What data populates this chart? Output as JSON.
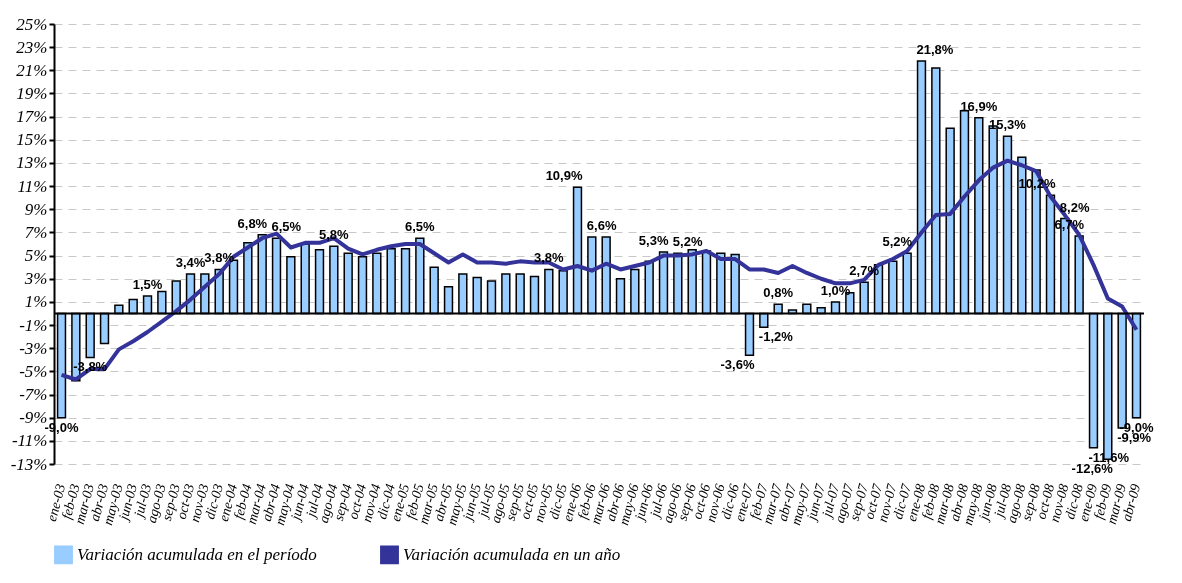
{
  "chart_data": {
    "type": "bar",
    "categories": [
      "ene-03",
      "feb-03",
      "mar-03",
      "abr-03",
      "may-03",
      "jun-03",
      "jul-03",
      "ago-03",
      "sep-03",
      "oct-03",
      "nov-03",
      "dic-03",
      "ene-04",
      "feb-04",
      "mar-04",
      "abr-04",
      "may-04",
      "jun-04",
      "jul-04",
      "ago-04",
      "sep-04",
      "oct-04",
      "nov-04",
      "dic-04",
      "ene-05",
      "feb-05",
      "mar-05",
      "abr-05",
      "may-05",
      "jun-05",
      "jul-05",
      "ago-05",
      "sep-05",
      "oct-05",
      "nov-05",
      "dic-05",
      "ene-06",
      "feb-06",
      "mar-06",
      "abr-06",
      "may-06",
      "jun-06",
      "jul-06",
      "ago-06",
      "sep-06",
      "oct-06",
      "nov-06",
      "dic-06",
      "ene-07",
      "feb-07",
      "mar-07",
      "abr-07",
      "may-07",
      "jun-07",
      "jul-07",
      "ago-07",
      "sep-07",
      "oct-07",
      "nov-07",
      "dic-07",
      "ene-08",
      "feb-08",
      "mar-08",
      "abr-08",
      "may-08",
      "jun-08",
      "jul-08",
      "ago-08",
      "sep-08",
      "oct-08",
      "nov-08",
      "dic-08",
      "ene-09",
      "feb-09",
      "mar-09",
      "abr-09"
    ],
    "series": [
      {
        "name": "Variación acumulada en el período",
        "type": "bar",
        "color": "#99ccff",
        "values": [
          -9.0,
          -5.8,
          -3.8,
          -2.6,
          0.7,
          1.2,
          1.5,
          1.9,
          2.8,
          3.4,
          3.4,
          3.8,
          4.6,
          6.1,
          6.8,
          6.5,
          4.9,
          6.0,
          5.5,
          5.8,
          5.2,
          4.9,
          5.2,
          5.6,
          5.6,
          6.5,
          4.0,
          2.3,
          3.4,
          3.1,
          2.8,
          3.4,
          3.4,
          3.2,
          3.8,
          3.7,
          10.9,
          6.6,
          6.6,
          3.0,
          3.8,
          4.5,
          5.3,
          5.2,
          5.5,
          5.4,
          5.2,
          5.1,
          -3.6,
          -1.2,
          0.8,
          0.3,
          0.8,
          0.5,
          1.0,
          1.8,
          2.7,
          4.2,
          4.5,
          5.2,
          21.8,
          21.2,
          16.0,
          17.5,
          16.9,
          16.2,
          15.3,
          13.5,
          12.4,
          10.2,
          8.2,
          6.7,
          -11.6,
          -12.6,
          -9.9,
          -9.0
        ],
        "value_labels": [
          "-9,0%",
          null,
          "-3,8%",
          null,
          null,
          null,
          "1,5%",
          null,
          null,
          "3,4%",
          null,
          "3,8%",
          null,
          null,
          "6,8%",
          "6,5%",
          null,
          null,
          null,
          "5,8%",
          null,
          null,
          null,
          null,
          null,
          "6,5%",
          null,
          null,
          null,
          null,
          null,
          null,
          null,
          null,
          "3,8%",
          null,
          "10,9%",
          "6,6%",
          null,
          null,
          null,
          null,
          "5,3%",
          "5,2%",
          null,
          null,
          null,
          null,
          "-3,6%",
          "-1,2%",
          "0,8%",
          null,
          null,
          null,
          "1,0%",
          null,
          "2,7%",
          null,
          null,
          "5,2%",
          "21,8%",
          null,
          null,
          null,
          "16,9%",
          null,
          "15,3%",
          null,
          null,
          "10,2%",
          "8,2%",
          "6,7%",
          "-11,6%",
          "-12,6%",
          "-9,9%",
          "-9,0%"
        ]
      },
      {
        "name": "Variación acumulada en un año",
        "type": "line",
        "color": "#333399",
        "values": [
          -5.3,
          -5.7,
          -4.8,
          -4.8,
          -3.1,
          -2.4,
          -1.6,
          -0.7,
          0.2,
          1.2,
          2.3,
          3.4,
          4.9,
          5.7,
          6.5,
          6.9,
          5.7,
          6.1,
          6.1,
          6.5,
          5.6,
          5.1,
          5.5,
          5.8,
          6.0,
          6.0,
          5.2,
          4.4,
          5.1,
          4.4,
          4.4,
          4.3,
          4.5,
          4.4,
          4.4,
          3.8,
          4.1,
          3.7,
          4.3,
          3.8,
          4.1,
          4.4,
          5.0,
          5.0,
          5.1,
          5.4,
          4.7,
          4.7,
          3.8,
          3.8,
          3.5,
          4.1,
          3.5,
          3.0,
          2.6,
          2.6,
          2.9,
          4.2,
          4.7,
          5.4,
          7.0,
          8.5,
          8.6,
          10.1,
          11.5,
          12.6,
          13.2,
          12.8,
          12.3,
          10.1,
          8.5,
          6.8,
          4.2,
          1.3,
          0.6,
          -1.4
        ]
      }
    ],
    "ylim": [
      -13,
      25
    ],
    "yticks": [
      {
        "value": -13,
        "label": "-13%"
      },
      {
        "value": -11,
        "label": "-11%"
      },
      {
        "value": -9,
        "label": "-9%"
      },
      {
        "value": -7,
        "label": "-7%"
      },
      {
        "value": -5,
        "label": "-5%"
      },
      {
        "value": -3,
        "label": "-3%"
      },
      {
        "value": -1,
        "label": "-1%"
      },
      {
        "value": 1,
        "label": "1%"
      },
      {
        "value": 3,
        "label": "3%"
      },
      {
        "value": 5,
        "label": "5%"
      },
      {
        "value": 7,
        "label": "7%"
      },
      {
        "value": 9,
        "label": "9%"
      },
      {
        "value": 11,
        "label": "11%"
      },
      {
        "value": 13,
        "label": "13%"
      },
      {
        "value": 15,
        "label": "15%"
      },
      {
        "value": 17,
        "label": "17%"
      },
      {
        "value": 19,
        "label": "19%"
      },
      {
        "value": 21,
        "label": "21%"
      },
      {
        "value": 23,
        "label": "23%"
      },
      {
        "value": 25,
        "label": "25%"
      }
    ],
    "grid": "y",
    "legend": "bottom",
    "marker": "none",
    "line_style": "solid"
  }
}
